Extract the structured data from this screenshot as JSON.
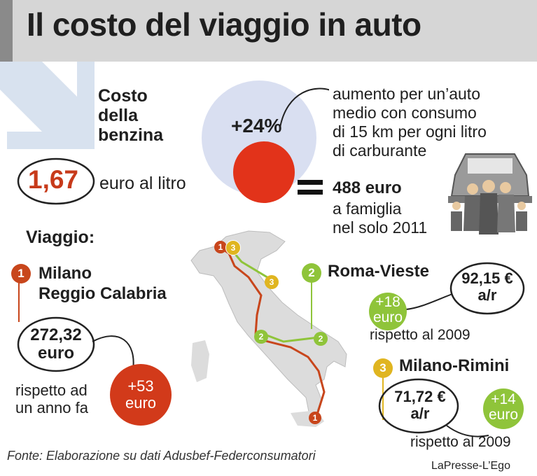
{
  "title": "Il costo del viaggio in auto",
  "fuel": {
    "heading_lines": [
      "Costo",
      "della",
      "benzina"
    ],
    "price": "1,67",
    "price_unit": "euro al litro"
  },
  "increase": {
    "percent": "+24%",
    "description_lines": [
      "aumento per un’auto",
      "medio con consumo",
      "di 15 km per ogni litro",
      "di carburante"
    ],
    "equals_value": "488 euro",
    "equals_lines": [
      "a famiglia",
      "nel solo 2011"
    ]
  },
  "trips_heading": "Viaggio:",
  "trips": [
    {
      "number": "1",
      "route_lines": [
        "Milano",
        "Reggio Calabria"
      ],
      "cost_lines": [
        "272,32",
        "euro"
      ],
      "delta_lines": [
        "+53",
        "euro"
      ],
      "compare_lines": [
        "rispetto ad",
        "un anno fa"
      ],
      "color": "#c8461c"
    },
    {
      "number": "2",
      "route_lines": [
        "Roma-Vieste"
      ],
      "cost_lines": [
        "92,15 €",
        "a/r"
      ],
      "delta_lines": [
        "+18",
        "euro"
      ],
      "compare_lines": [
        "rispetto al 2009"
      ],
      "color": "#8fc43a"
    },
    {
      "number": "3",
      "route_lines": [
        "Milano-Rimini"
      ],
      "cost_lines": [
        "71,72 €",
        "a/r"
      ],
      "delta_lines": [
        "+14",
        "euro"
      ],
      "compare_lines": [
        "rispetto al 2009"
      ],
      "color": "#e0b520"
    }
  ],
  "source": "Fonte: Elaborazione su dati Adusbef-Federconsumatori",
  "credit": "LaPresse-L’Ego"
}
